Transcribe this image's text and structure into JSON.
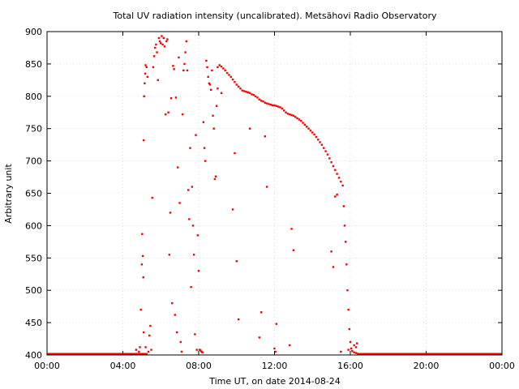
{
  "chart_data": {
    "type": "scatter",
    "title": "Total UV radiation intensity (uncalibrated). Metsähovi Radio Observatory",
    "xlabel": "Time UT, on date 2014-08-24",
    "ylabel": "Arbitrary unit",
    "xlim": [
      0,
      24
    ],
    "ylim": [
      400,
      900
    ],
    "x_ticks": [
      0,
      4,
      8,
      12,
      16,
      20,
      24
    ],
    "x_tick_labels": [
      "00:00",
      "04:00",
      "08:00",
      "12:00",
      "16:00",
      "20:00",
      "00:00"
    ],
    "y_ticks": [
      400,
      450,
      500,
      550,
      600,
      650,
      700,
      750,
      800,
      850,
      900
    ],
    "y_tick_labels": [
      "400",
      "450",
      "500",
      "550",
      "600",
      "650",
      "700",
      "750",
      "800",
      "850",
      "900"
    ],
    "grid": true,
    "marker_color": "#ff0000",
    "series": [
      {
        "points": [
          [
            4.5,
            401
          ],
          [
            4.7,
            408
          ],
          [
            4.85,
            405
          ],
          [
            4.9,
            412
          ],
          [
            4.95,
            470
          ],
          [
            5.0,
            540
          ],
          [
            5.02,
            587
          ],
          [
            5.05,
            553
          ],
          [
            5.08,
            520
          ],
          [
            5.1,
            732
          ],
          [
            5.12,
            800
          ],
          [
            5.15,
            820
          ],
          [
            5.18,
            835
          ],
          [
            5.2,
            848
          ],
          [
            5.25,
            845
          ],
          [
            5.3,
            830
          ],
          [
            5.1,
            435
          ],
          [
            5.2,
            412
          ],
          [
            5.35,
            405
          ],
          [
            5.4,
            430
          ],
          [
            5.45,
            445
          ],
          [
            5.5,
            408
          ],
          [
            5.55,
            643
          ],
          [
            5.6,
            845
          ],
          [
            5.65,
            862
          ],
          [
            5.7,
            875
          ],
          [
            5.75,
            880
          ],
          [
            5.8,
            868
          ],
          [
            5.85,
            825
          ],
          [
            5.9,
            890
          ],
          [
            5.95,
            885
          ],
          [
            6.0,
            882
          ],
          [
            6.05,
            893
          ],
          [
            6.1,
            880
          ],
          [
            6.15,
            890
          ],
          [
            6.2,
            877
          ],
          [
            6.25,
            772
          ],
          [
            6.3,
            885
          ],
          [
            6.35,
            888
          ],
          [
            6.4,
            775
          ],
          [
            6.45,
            555
          ],
          [
            6.5,
            620
          ],
          [
            6.55,
            797
          ],
          [
            6.6,
            480
          ],
          [
            6.65,
            847
          ],
          [
            6.7,
            842
          ],
          [
            6.75,
            462
          ],
          [
            6.8,
            798
          ],
          [
            6.85,
            435
          ],
          [
            6.9,
            690
          ],
          [
            6.95,
            860
          ],
          [
            7.0,
            635
          ],
          [
            7.05,
            420
          ],
          [
            7.1,
            405
          ],
          [
            7.15,
            772
          ],
          [
            7.2,
            840
          ],
          [
            7.25,
            850
          ],
          [
            7.3,
            868
          ],
          [
            7.35,
            885
          ],
          [
            7.4,
            840
          ],
          [
            7.45,
            655
          ],
          [
            7.5,
            610
          ],
          [
            7.55,
            720
          ],
          [
            7.6,
            505
          ],
          [
            7.65,
            660
          ],
          [
            7.7,
            600
          ],
          [
            7.75,
            555
          ],
          [
            7.8,
            432
          ],
          [
            7.85,
            740
          ],
          [
            7.9,
            408
          ],
          [
            7.95,
            585
          ],
          [
            8.0,
            530
          ],
          [
            8.05,
            408
          ],
          [
            8.1,
            407
          ],
          [
            8.15,
            405
          ],
          [
            8.2,
            404
          ],
          [
            8.25,
            760
          ],
          [
            8.3,
            720
          ],
          [
            8.35,
            700
          ],
          [
            8.4,
            855
          ],
          [
            8.45,
            845
          ],
          [
            8.5,
            830
          ],
          [
            8.55,
            820
          ],
          [
            8.6,
            818
          ],
          [
            8.65,
            810
          ],
          [
            8.7,
            840
          ],
          [
            8.75,
            770
          ],
          [
            8.8,
            750
          ],
          [
            8.85,
            672
          ],
          [
            8.9,
            676
          ],
          [
            8.95,
            785
          ],
          [
            9.0,
            845
          ],
          [
            9.1,
            848
          ],
          [
            9.2,
            846
          ],
          [
            9.3,
            843
          ],
          [
            9.4,
            840
          ],
          [
            9.5,
            836
          ],
          [
            9.6,
            833
          ],
          [
            9.7,
            830
          ],
          [
            9.8,
            826
          ],
          [
            9.9,
            822
          ],
          [
            10.0,
            818
          ],
          [
            10.1,
            815
          ],
          [
            10.2,
            812
          ],
          [
            10.3,
            809
          ],
          [
            10.4,
            808
          ],
          [
            10.5,
            807
          ],
          [
            10.6,
            806
          ],
          [
            10.7,
            805
          ],
          [
            10.8,
            803
          ],
          [
            10.9,
            802
          ],
          [
            11.0,
            800
          ],
          [
            11.1,
            798
          ],
          [
            11.2,
            795
          ],
          [
            11.3,
            793
          ],
          [
            11.4,
            792
          ],
          [
            11.5,
            790
          ],
          [
            11.6,
            789
          ],
          [
            11.7,
            788
          ],
          [
            11.8,
            787
          ],
          [
            11.9,
            786
          ],
          [
            12.0,
            786
          ],
          [
            12.1,
            785
          ],
          [
            12.2,
            784
          ],
          [
            12.3,
            783
          ],
          [
            12.4,
            781
          ],
          [
            12.5,
            778
          ],
          [
            12.6,
            775
          ],
          [
            12.7,
            773
          ],
          [
            12.8,
            772
          ],
          [
            12.9,
            771
          ],
          [
            13.0,
            770
          ],
          [
            13.1,
            768
          ],
          [
            13.2,
            766
          ],
          [
            13.3,
            764
          ],
          [
            13.4,
            762
          ],
          [
            13.5,
            759
          ],
          [
            13.6,
            756
          ],
          [
            13.7,
            753
          ],
          [
            13.8,
            750
          ],
          [
            13.9,
            747
          ],
          [
            14.0,
            744
          ],
          [
            14.1,
            741
          ],
          [
            14.2,
            737
          ],
          [
            14.3,
            733
          ],
          [
            14.4,
            729
          ],
          [
            14.5,
            725
          ],
          [
            14.6,
            720
          ],
          [
            14.7,
            715
          ],
          [
            14.8,
            710
          ],
          [
            14.9,
            704
          ],
          [
            15.0,
            698
          ],
          [
            15.1,
            692
          ],
          [
            15.2,
            686
          ],
          [
            15.3,
            680
          ],
          [
            15.4,
            674
          ],
          [
            15.5,
            668
          ],
          [
            15.6,
            662
          ],
          [
            15.65,
            630
          ],
          [
            15.7,
            600
          ],
          [
            15.75,
            575
          ],
          [
            15.8,
            540
          ],
          [
            15.85,
            500
          ],
          [
            15.9,
            470
          ],
          [
            15.95,
            440
          ],
          [
            16.0,
            420
          ],
          [
            16.05,
            410
          ],
          [
            16.1,
            406
          ],
          [
            16.2,
            404
          ],
          [
            16.3,
            403
          ],
          [
            16.4,
            402
          ],
          [
            16.5,
            401
          ],
          [
            9.0,
            812
          ],
          [
            9.2,
            805
          ],
          [
            9.8,
            625
          ],
          [
            9.9,
            712
          ],
          [
            10.0,
            545
          ],
          [
            10.1,
            455
          ],
          [
            10.7,
            750
          ],
          [
            11.2,
            427
          ],
          [
            11.3,
            466
          ],
          [
            11.5,
            738
          ],
          [
            11.6,
            660
          ],
          [
            12.0,
            410
          ],
          [
            12.05,
            405
          ],
          [
            12.1,
            448
          ],
          [
            12.8,
            415
          ],
          [
            12.9,
            595
          ],
          [
            13.0,
            562
          ],
          [
            15.0,
            560
          ],
          [
            15.1,
            536
          ],
          [
            15.2,
            645
          ],
          [
            15.3,
            648
          ],
          [
            15.5,
            405
          ],
          [
            15.9,
            408
          ],
          [
            16.2,
            415
          ],
          [
            16.3,
            412
          ],
          [
            16.35,
            418
          ]
        ]
      }
    ],
    "baseline": {
      "y": 400,
      "x_ranges": [
        [
          0,
          5.3
        ],
        [
          16.5,
          24
        ]
      ]
    }
  }
}
